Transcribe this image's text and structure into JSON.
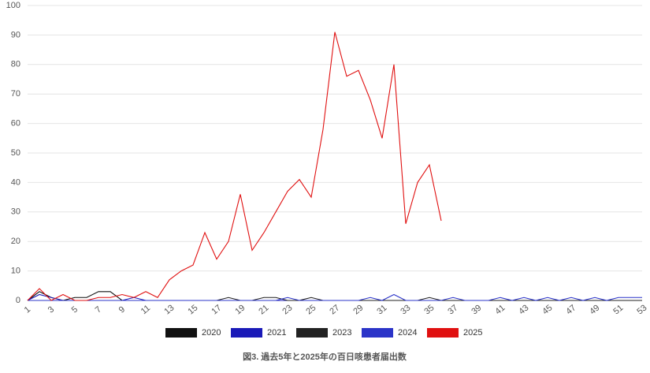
{
  "chart_data": {
    "type": "line",
    "title": "図3. 過去5年と2025年の百日咳患者届出数",
    "categories": [
      1,
      null,
      3,
      null,
      5,
      null,
      7,
      null,
      9,
      null,
      11,
      null,
      13,
      null,
      15,
      null,
      17,
      null,
      19,
      null,
      21,
      null,
      23,
      null,
      25,
      null,
      27,
      null,
      29,
      null,
      31,
      null,
      33,
      null,
      35,
      null,
      37,
      null,
      39,
      null,
      41,
      null,
      43,
      null,
      45,
      null,
      47,
      null,
      49,
      null,
      51,
      null,
      53
    ],
    "ylim": [
      0,
      100
    ],
    "yticks": [
      0,
      10,
      20,
      30,
      40,
      50,
      60,
      70,
      80,
      90,
      100
    ],
    "grid": true,
    "series": [
      {
        "name": "2020",
        "color": "#111111",
        "values": [
          0,
          3,
          1,
          0,
          1,
          1,
          3,
          3,
          0,
          0,
          0,
          0,
          0,
          0,
          0,
          0,
          0,
          0,
          0,
          0,
          0,
          0,
          0,
          0,
          0,
          0,
          0,
          0,
          0,
          0,
          0,
          0,
          0,
          0,
          0,
          0,
          0,
          0,
          0,
          0,
          0,
          0,
          0,
          0,
          0,
          0,
          0,
          0,
          0,
          0,
          0,
          0,
          0
        ]
      },
      {
        "name": "2021",
        "color": "#1a1ab8",
        "values": [
          0,
          2,
          1,
          0,
          0,
          0,
          0,
          0,
          0,
          1,
          0,
          0,
          0,
          0,
          0,
          0,
          0,
          0,
          0,
          0,
          0,
          0,
          0,
          0,
          0,
          0,
          0,
          0,
          0,
          0,
          0,
          0,
          0,
          0,
          0,
          0,
          0,
          0,
          0,
          0,
          0,
          0,
          0,
          0,
          0,
          0,
          0,
          0,
          0,
          0,
          0,
          0,
          0
        ]
      },
      {
        "name": "2023",
        "color": "#222222",
        "values": [
          0,
          0,
          0,
          0,
          0,
          0,
          0,
          0,
          0,
          0,
          0,
          0,
          0,
          0,
          0,
          0,
          0,
          1,
          0,
          0,
          1,
          1,
          0,
          0,
          1,
          0,
          0,
          0,
          0,
          0,
          0,
          0,
          0,
          0,
          1,
          0,
          0,
          0,
          0,
          0,
          0,
          0,
          0,
          0,
          0,
          0,
          0,
          0,
          0,
          0,
          0,
          0,
          0
        ]
      },
      {
        "name": "2024",
        "color": "#2b34c8",
        "values": [
          0,
          0,
          0,
          0,
          0,
          0,
          0,
          0,
          0,
          0,
          0,
          0,
          0,
          0,
          0,
          0,
          0,
          0,
          0,
          0,
          0,
          0,
          1,
          0,
          0,
          0,
          0,
          0,
          0,
          1,
          0,
          2,
          0,
          0,
          0,
          0,
          1,
          0,
          0,
          0,
          1,
          0,
          1,
          0,
          1,
          0,
          1,
          0,
          1,
          0,
          1,
          1,
          1
        ]
      },
      {
        "name": "2025",
        "color": "#e01010",
        "values": [
          0,
          4,
          0,
          2,
          0,
          0,
          1,
          1,
          2,
          1,
          3,
          1,
          7,
          10,
          12,
          23,
          14,
          20,
          36,
          17,
          23,
          30,
          37,
          41,
          35,
          58,
          91,
          76,
          78,
          68,
          55,
          80,
          26,
          40,
          46,
          27,
          null,
          null,
          null,
          null,
          null,
          null,
          null,
          null,
          null,
          null,
          null,
          null,
          null,
          null,
          null,
          null,
          null
        ]
      }
    ]
  }
}
